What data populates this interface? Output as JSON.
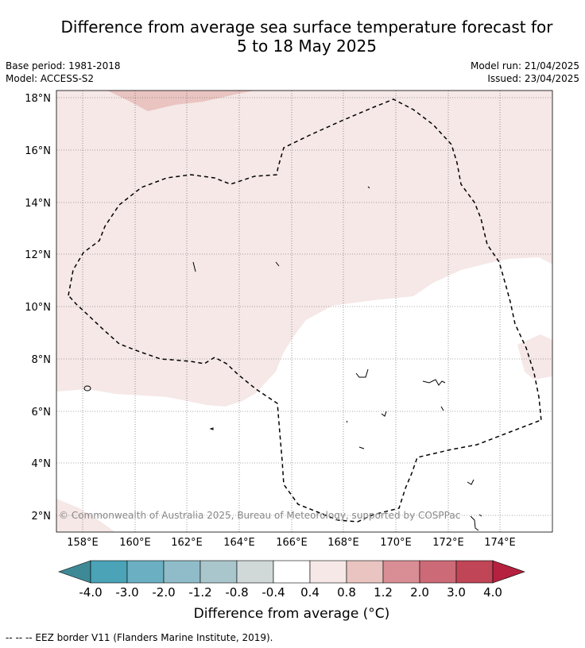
{
  "header": {
    "title_line1": "Difference from average sea surface temperature forecast for",
    "title_line2": "5 to 18 May 2025",
    "base_period": "Base period: 1981-2018",
    "model": "Model: ACCESS-S2",
    "model_run": "Model run: 21/04/2025",
    "issued": "Issued: 23/04/2025"
  },
  "map": {
    "lat_labels": [
      "18°N",
      "16°N",
      "14°N",
      "12°N",
      "10°N",
      "8°N",
      "6°N",
      "4°N",
      "2°N"
    ],
    "lon_labels": [
      "158°E",
      "160°E",
      "162°E",
      "164°E",
      "166°E",
      "168°E",
      "170°E",
      "172°E",
      "174°E"
    ],
    "copyright": "© Commonwealth of Australia 2025, Bureau of Meteorology, supported by COSPPac"
  },
  "colorbar": {
    "labels": [
      "-4.0",
      "-3.0",
      "-2.0",
      "-1.2",
      "-0.8",
      "-0.4",
      "0.4",
      "0.8",
      "1.2",
      "2.0",
      "3.0",
      "4.0"
    ],
    "colors": [
      "#3d8a96",
      "#4aa3b7",
      "#6bb0c2",
      "#8fbcc8",
      "#a9c6cc",
      "#d0d8d8",
      "#ffffff",
      "#f5e8e7",
      "#e9c4c0",
      "#d98e96",
      "#cc6a77",
      "#c04557",
      "#b5213f"
    ],
    "label": "Difference from average (°C)"
  },
  "footer": {
    "eez_note": "-- -- -- EEZ border V11 (Flanders Marine Institute, 2019)."
  }
}
